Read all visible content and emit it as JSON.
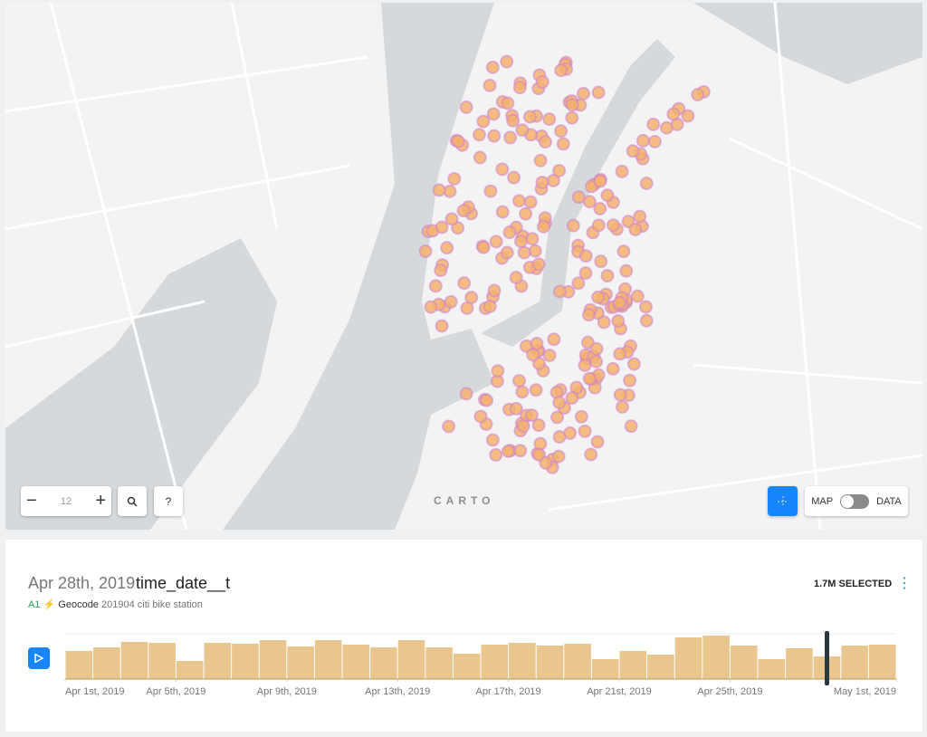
{
  "map_controls": {
    "zoom": "12",
    "help": "?",
    "logo": "CARTO",
    "toggle_left": "MAP",
    "toggle_right": "DATA"
  },
  "widget": {
    "date": "Apr 28th, 2019",
    "column": "time_date__t",
    "selected": "1.7M SELECTED",
    "layer_id": "A1",
    "layer_type": "Geocode",
    "source": "201904 citi bike station"
  },
  "chart_data": {
    "type": "histogram",
    "color": "#e8c68e",
    "bins": [
      0,
      1,
      2,
      3,
      4,
      5,
      6,
      7,
      8,
      9,
      10,
      11,
      12,
      13,
      14,
      15,
      16,
      17,
      18,
      19,
      20,
      21,
      22,
      23,
      24,
      25,
      26,
      27,
      28,
      29,
      30
    ],
    "values": [
      31,
      35,
      41,
      40,
      20,
      40,
      39,
      43,
      36,
      43,
      38,
      35,
      43,
      35,
      28,
      38,
      40,
      37,
      39,
      22,
      31,
      27,
      46,
      48,
      37,
      22,
      34,
      25,
      37,
      38
    ],
    "xlim": [
      0,
      30
    ],
    "ylim": [
      0,
      50
    ],
    "xticks": [
      {
        "value": 0,
        "label": "Apr 1st, 2019"
      },
      {
        "value": 4,
        "label": "Apr 5th, 2019"
      },
      {
        "value": 8,
        "label": "Apr 9th, 2019"
      },
      {
        "value": 12,
        "label": "Apr 13th, 2019"
      },
      {
        "value": 16,
        "label": "Apr 17th, 2019"
      },
      {
        "value": 20,
        "label": "Apr 21st, 2019"
      },
      {
        "value": 24,
        "label": "Apr 25th, 2019"
      },
      {
        "value": 30,
        "label": "May 1st, 2019"
      }
    ],
    "cursor": 27.5
  }
}
